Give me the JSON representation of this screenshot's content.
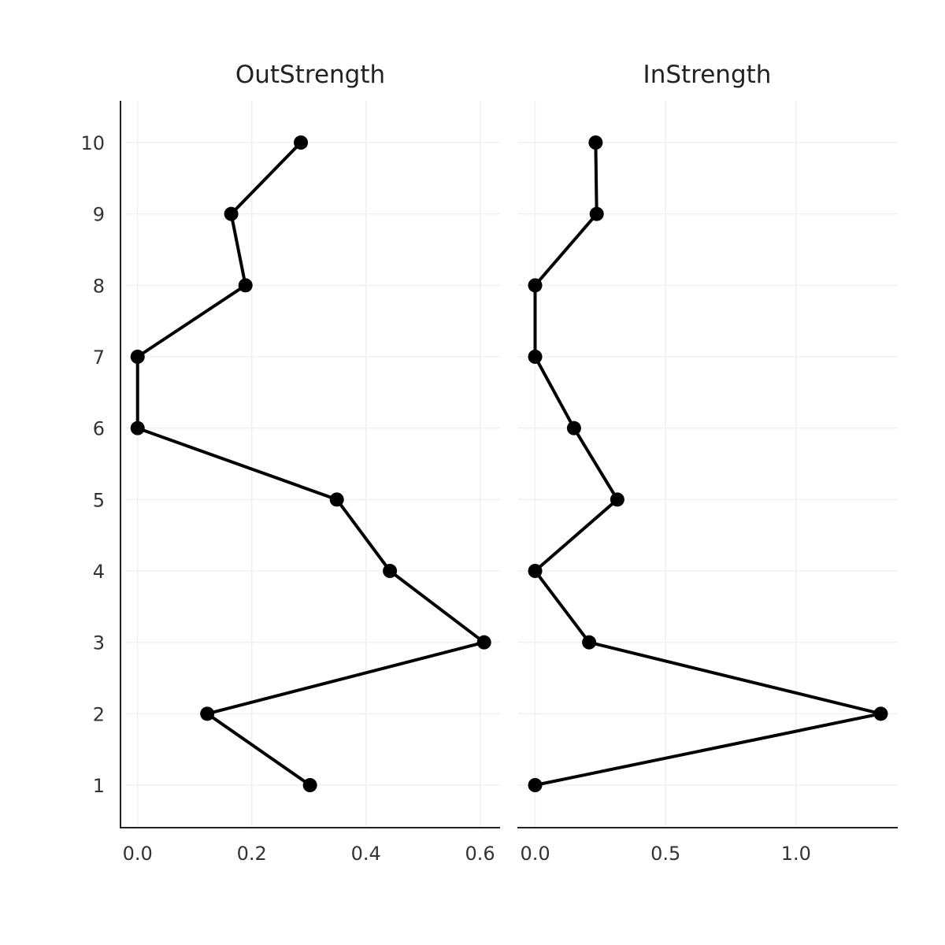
{
  "chart_data": {
    "type": "line",
    "y_categories": [
      1,
      2,
      3,
      4,
      5,
      6,
      7,
      8,
      9,
      10
    ],
    "y_tick_labels": [
      "1",
      "2",
      "3",
      "4",
      "5",
      "6",
      "7",
      "8",
      "9",
      "10"
    ],
    "grid": true,
    "panels": [
      {
        "title": "OutStrength",
        "xlim": [
          -0.03,
          0.635
        ],
        "x_ticks": [
          0.0,
          0.2,
          0.4,
          0.6
        ],
        "x_tick_labels": [
          "0.0",
          "0.2",
          "0.4",
          "0.6"
        ],
        "values": [
          0.302,
          0.122,
          0.607,
          0.442,
          0.349,
          0.0,
          0.0,
          0.189,
          0.164,
          0.286
        ]
      },
      {
        "title": "InStrength",
        "xlim": [
          -0.065,
          1.39
        ],
        "x_ticks": [
          0.0,
          0.5,
          1.0
        ],
        "x_tick_labels": [
          "0.0",
          "0.5",
          "1.0"
        ],
        "values": [
          0.0,
          1.325,
          0.207,
          0.0,
          0.315,
          0.149,
          0.0,
          0.0,
          0.236,
          0.232
        ]
      }
    ]
  }
}
